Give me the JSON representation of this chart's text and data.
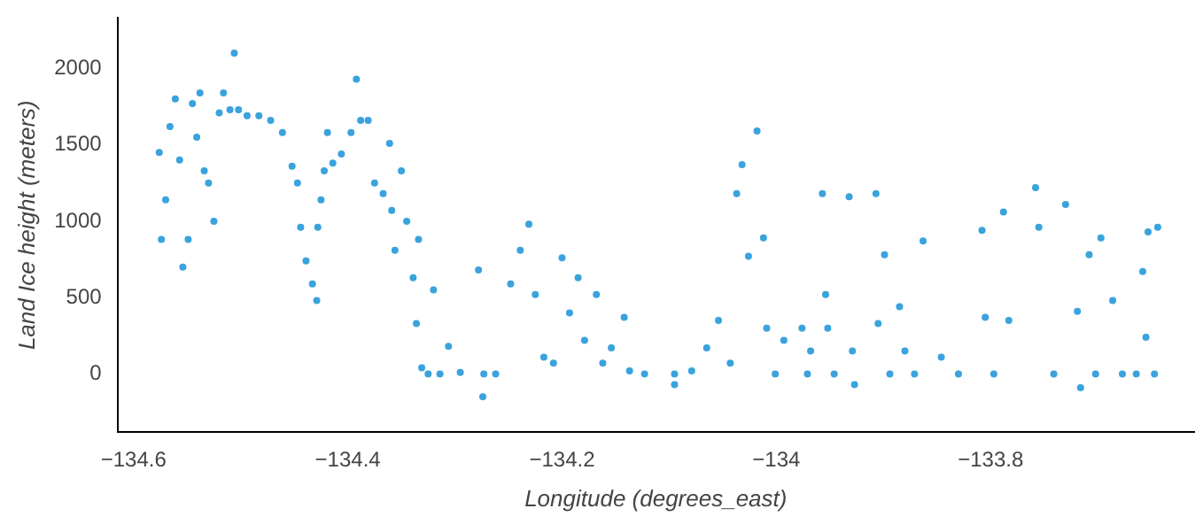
{
  "chart_data": {
    "type": "scatter",
    "xlabel": "Longitude (degrees_east)",
    "ylabel": "Land Ice height (meters)",
    "x": [
      -134.576,
      -134.574,
      -134.57,
      -134.566,
      -134.561,
      -134.557,
      -134.554,
      -134.549,
      -134.545,
      -134.541,
      -134.538,
      -134.534,
      -134.53,
      -134.525,
      -134.52,
      -134.516,
      -134.51,
      -134.506,
      -134.502,
      -134.494,
      -134.483,
      -134.472,
      -134.461,
      -134.452,
      -134.447,
      -134.444,
      -134.439,
      -134.433,
      -134.429,
      -134.428,
      -134.425,
      -134.422,
      -134.419,
      -134.414,
      -134.406,
      -134.397,
      -134.392,
      -134.388,
      -134.381,
      -134.375,
      -134.367,
      -134.361,
      -134.359,
      -134.356,
      -134.35,
      -134.345,
      -134.339,
      -134.336,
      -134.334,
      -134.331,
      -134.325,
      -134.32,
      -134.314,
      -134.306,
      -134.295,
      -134.278,
      -134.274,
      -134.273,
      -134.262,
      -134.248,
      -134.239,
      -134.231,
      -134.225,
      -134.217,
      -134.208,
      -134.2,
      -134.193,
      -134.185,
      -134.179,
      -134.168,
      -134.162,
      -134.154,
      -134.142,
      -134.137,
      -134.123,
      -134.095,
      -134.095,
      -134.079,
      -134.065,
      -134.054,
      -134.043,
      -134.037,
      -134.032,
      -134.026,
      -134.018,
      -134.012,
      -134.009,
      -134.001,
      -133.993,
      -133.976,
      -133.968,
      -133.971,
      -133.957,
      -133.954,
      -133.952,
      -133.946,
      -133.932,
      -133.929,
      -133.927,
      -133.907,
      -133.905,
      -133.899,
      -133.894,
      -133.885,
      -133.88,
      -133.871,
      -133.863,
      -133.846,
      -133.83,
      -133.808,
      -133.805,
      -133.797,
      -133.788,
      -133.783,
      -133.758,
      -133.755,
      -133.741,
      -133.73,
      -133.719,
      -133.716,
      -133.708,
      -133.702,
      -133.697,
      -133.686,
      -133.677,
      -133.664,
      -133.658,
      -133.655,
      -133.653,
      -133.647,
      -133.644
    ],
    "series": [
      {
        "color": "#3aa3dd",
        "values": [
          1450,
          880,
          1140,
          1620,
          1800,
          1400,
          700,
          880,
          1770,
          1550,
          1840,
          1330,
          1250,
          1000,
          1710,
          1840,
          1730,
          2100,
          1730,
          1690,
          1690,
          1660,
          1580,
          1360,
          1250,
          960,
          740,
          590,
          480,
          960,
          1140,
          1330,
          1580,
          1380,
          1440,
          1580,
          1930,
          1660,
          1660,
          1250,
          1180,
          1510,
          1070,
          810,
          1330,
          1000,
          630,
          330,
          880,
          40,
          0,
          550,
          0,
          180,
          10,
          680,
          -150,
          0,
          0,
          590,
          810,
          980,
          520,
          110,
          70,
          760,
          400,
          630,
          220,
          520,
          70,
          170,
          370,
          20,
          0,
          0,
          -70,
          20,
          170,
          350,
          70,
          1180,
          1370,
          770,
          1590,
          890,
          300,
          0,
          220,
          300,
          150,
          0,
          1180,
          520,
          300,
          0,
          1160,
          150,
          -70,
          1180,
          330,
          780,
          0,
          440,
          150,
          0,
          870,
          110,
          0,
          940,
          370,
          0,
          1060,
          350,
          1220,
          960,
          0,
          1110,
          410,
          -90,
          780,
          0,
          890,
          480,
          0,
          0,
          670,
          240,
          930,
          0,
          960
        ]
      }
    ],
    "xlim": [
      -134.615,
      -133.61
    ],
    "ylim": [
      -380,
      2330
    ],
    "xticks": [
      {
        "value": -134.6,
        "label": "−134.6"
      },
      {
        "value": -134.4,
        "label": "−134.4"
      },
      {
        "value": -134.2,
        "label": "−134.2"
      },
      {
        "value": -134,
        "label": "−134"
      },
      {
        "value": -133.8,
        "label": "−133.8"
      }
    ],
    "yticks": [
      0,
      500,
      1000,
      1500,
      2000
    ],
    "grid": false,
    "legend": false,
    "marker": "circle"
  }
}
